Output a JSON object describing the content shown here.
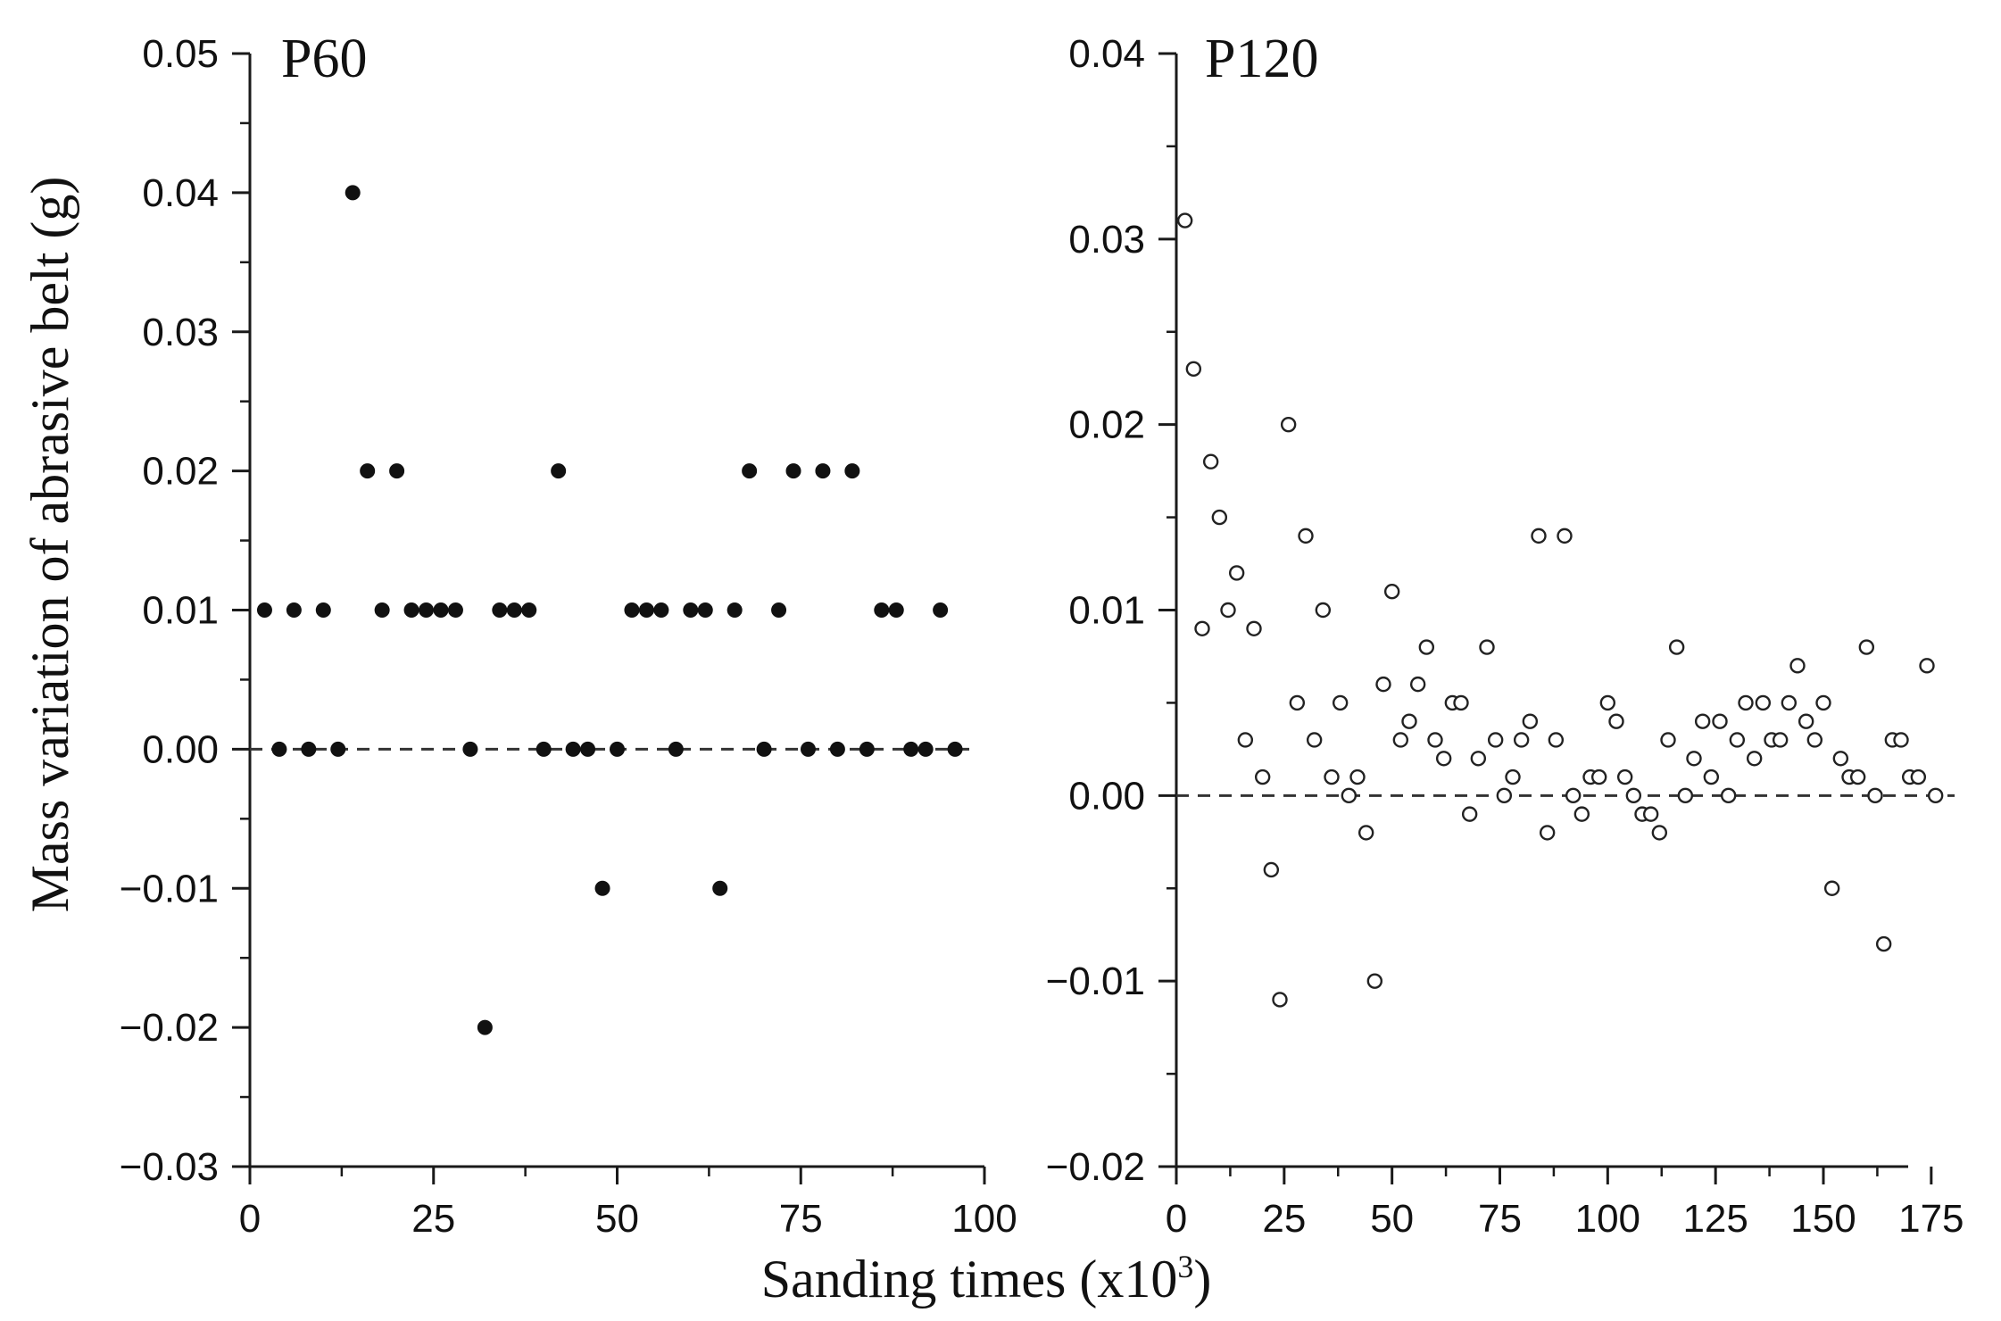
{
  "chart_data": [
    {
      "type": "scatter",
      "title": "P60",
      "marker": "filled-circle",
      "ylabel": "Mass variation of abrasive belt (g)",
      "xlim": [
        0,
        100
      ],
      "ylim": [
        -0.03,
        0.05
      ],
      "xticks": [
        0,
        25,
        50,
        75,
        100
      ],
      "xtick_labels": [
        "0",
        "25",
        "50",
        "75",
        "100"
      ],
      "yticks": [
        -0.03,
        -0.02,
        -0.01,
        0.0,
        0.01,
        0.02,
        0.03,
        0.04,
        0.05
      ],
      "ytick_labels": [
        "−0.03",
        "−0.02",
        "−0.01",
        "0.00",
        "0.01",
        "0.02",
        "0.03",
        "0.04",
        "0.05"
      ],
      "reference_line": {
        "y": 0,
        "style": "dashed"
      },
      "x": [
        2,
        4,
        6,
        8,
        10,
        12,
        14,
        16,
        18,
        20,
        22,
        24,
        26,
        28,
        30,
        32,
        34,
        36,
        38,
        40,
        42,
        44,
        46,
        48,
        50,
        52,
        54,
        56,
        58,
        60,
        62,
        64,
        66,
        68,
        70,
        72,
        74,
        76,
        78,
        80,
        82,
        84,
        86,
        88,
        90,
        92,
        94,
        96
      ],
      "y": [
        0.01,
        0.0,
        0.01,
        0.0,
        0.01,
        0.0,
        0.04,
        0.02,
        0.01,
        0.02,
        0.01,
        0.01,
        0.01,
        0.01,
        0.0,
        -0.02,
        0.01,
        0.01,
        0.01,
        0.0,
        0.02,
        0.0,
        0.0,
        -0.01,
        0.0,
        0.01,
        0.01,
        0.01,
        0.0,
        0.01,
        0.01,
        -0.01,
        0.01,
        0.02,
        0.0,
        0.01,
        0.02,
        0.0,
        0.02,
        0.0,
        0.02,
        0.0,
        0.01,
        0.01,
        0.0,
        0.0,
        0.01,
        0.0
      ]
    },
    {
      "type": "scatter",
      "title": "P120",
      "marker": "open-circle",
      "xlim": [
        0,
        180
      ],
      "ylim": [
        -0.02,
        0.04
      ],
      "xticks": [
        0,
        25,
        50,
        75,
        100,
        125,
        150,
        175
      ],
      "xtick_labels": [
        "0",
        "25",
        "50",
        "75",
        "100",
        "125",
        "150",
        "175"
      ],
      "yticks": [
        -0.02,
        -0.01,
        0.0,
        0.01,
        0.02,
        0.03,
        0.04
      ],
      "ytick_labels": [
        "−0.02",
        "−0.01",
        "0.00",
        "0.01",
        "0.02",
        "0.03",
        "0.04"
      ],
      "reference_line": {
        "y": 0,
        "style": "dashed"
      },
      "x": [
        2,
        4,
        6,
        8,
        10,
        12,
        14,
        16,
        18,
        20,
        22,
        24,
        26,
        28,
        30,
        32,
        34,
        36,
        38,
        40,
        42,
        44,
        46,
        48,
        50,
        52,
        54,
        56,
        58,
        60,
        62,
        64,
        66,
        68,
        70,
        72,
        74,
        76,
        78,
        80,
        82,
        84,
        86,
        88,
        90,
        92,
        94,
        96,
        98,
        100,
        102,
        104,
        106,
        108,
        110,
        112,
        114,
        116,
        118,
        120,
        122,
        124,
        126,
        128,
        130,
        132,
        134,
        136,
        138,
        140,
        142,
        144,
        146,
        148,
        150,
        152,
        154,
        156,
        158,
        160,
        162,
        164,
        166,
        168,
        170,
        172,
        174,
        176
      ],
      "y": [
        0.031,
        0.023,
        0.009,
        0.018,
        0.015,
        0.01,
        0.012,
        0.003,
        0.009,
        0.001,
        -0.004,
        -0.011,
        0.02,
        0.005,
        0.014,
        0.003,
        0.01,
        0.001,
        0.005,
        0.0,
        0.001,
        -0.002,
        -0.01,
        0.006,
        0.011,
        0.003,
        0.004,
        0.006,
        0.008,
        0.003,
        0.002,
        0.005,
        0.005,
        -0.001,
        0.002,
        0.008,
        0.003,
        0.0,
        0.001,
        0.003,
        0.004,
        0.014,
        -0.002,
        0.003,
        0.014,
        0.0,
        -0.001,
        0.001,
        0.001,
        0.005,
        0.004,
        0.001,
        0.0,
        -0.001,
        -0.001,
        -0.002,
        0.003,
        0.008,
        0.0,
        0.002,
        0.004,
        0.001,
        0.004,
        0.0,
        0.003,
        0.005,
        0.002,
        0.005,
        0.003,
        0.003,
        0.005,
        0.007,
        0.004,
        0.003,
        0.005,
        -0.005,
        0.002,
        0.001,
        0.001,
        0.008,
        0.0,
        -0.008,
        0.003,
        0.003,
        0.001,
        0.001,
        0.007,
        0.0
      ]
    }
  ],
  "shared": {
    "ylabel": "Mass variation of abrasive belt (g)",
    "xlabel_main": "Sanding times (x10",
    "xlabel_sup": "3",
    "xlabel_end": ")"
  }
}
